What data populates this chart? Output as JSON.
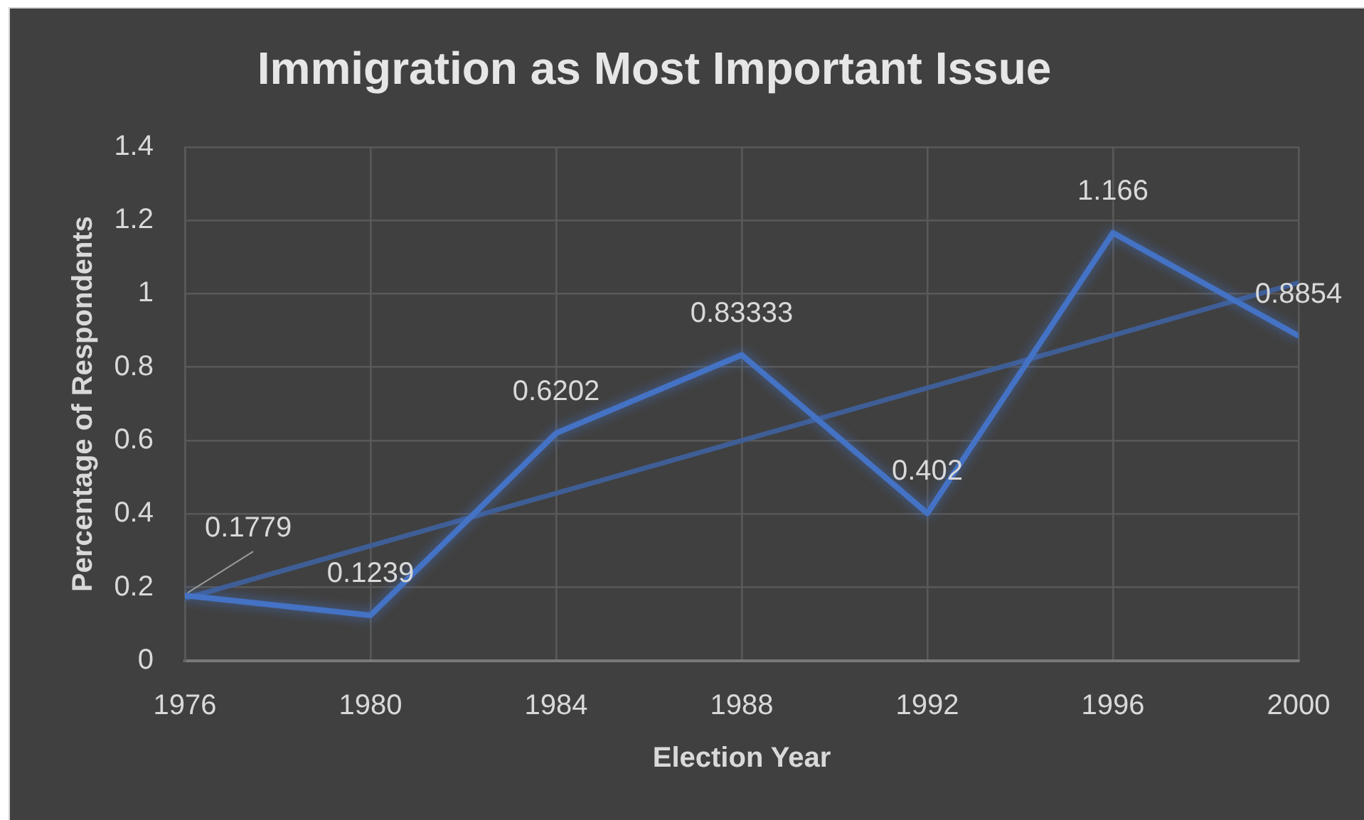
{
  "chart_data": {
    "type": "line",
    "title": "Immigration as Most Important Issue",
    "xlabel": "Election Year",
    "ylabel": "Percentage of Respondents",
    "x": [
      1976,
      1980,
      1984,
      1988,
      1992,
      1996,
      2000
    ],
    "series": [
      {
        "color": "#4472c4",
        "values": [
          0.1779,
          0.1239,
          0.6202,
          0.83333,
          0.402,
          1.166,
          0.8854
        ],
        "value_labels": [
          "0.1779",
          "0.1239",
          "0.6202",
          "0.83333",
          "0.402",
          "1.166",
          "0.8854"
        ]
      },
      {
        "type": "line",
        "x": [
          1976,
          2000
        ],
        "color": "#3f5e96",
        "values": [
          0.17,
          1.03
        ]
      }
    ],
    "xlim": [
      1976,
      2000
    ],
    "xticks": [
      1976,
      1980,
      1984,
      1988,
      1992,
      1996,
      2000
    ],
    "ylim": [
      0,
      1.4
    ],
    "yticks": [
      0,
      0.2,
      0.4,
      0.6,
      0.8,
      1,
      1.2,
      1.4
    ],
    "grid": true,
    "legend": false,
    "marker": "none",
    "line_style": "solid"
  }
}
